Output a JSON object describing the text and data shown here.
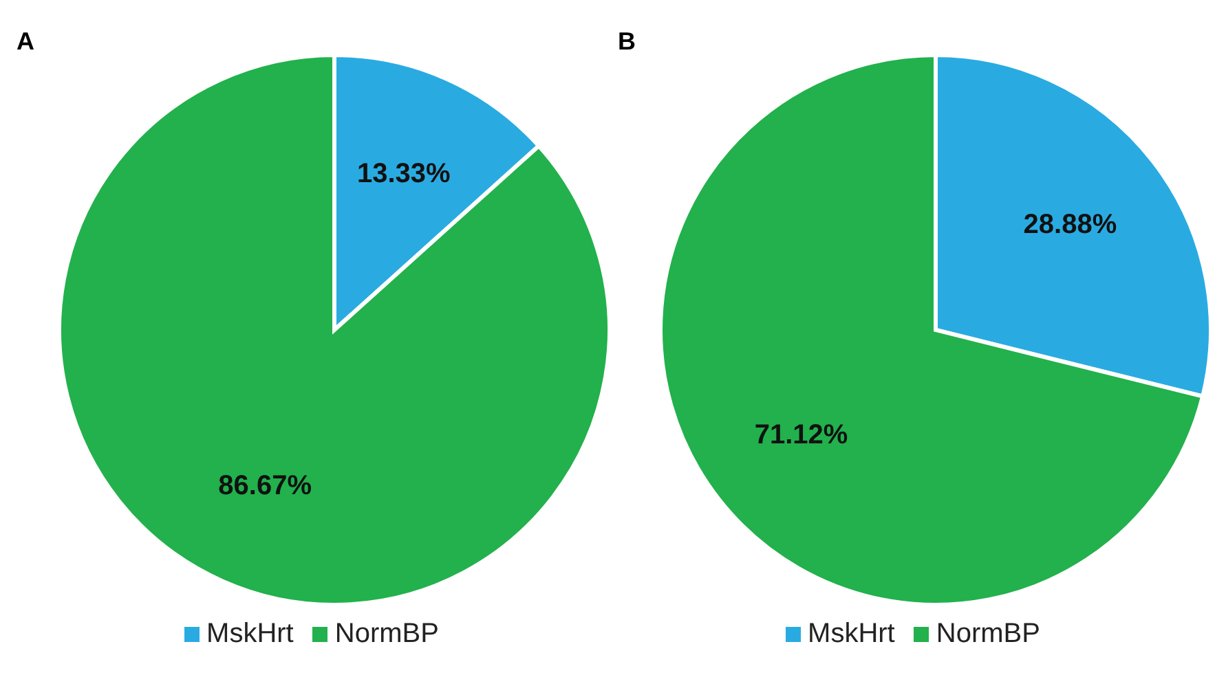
{
  "chart_data": [
    {
      "type": "pie",
      "title": "A",
      "categories": [
        "MskHrt",
        "NormBP"
      ],
      "values": [
        13.33,
        86.67
      ],
      "colors": [
        "#29abe2",
        "#22b14c"
      ],
      "value_labels": [
        "13.33%",
        "86.67%"
      ],
      "legend": "bottom"
    },
    {
      "type": "pie",
      "title": "B",
      "categories": [
        "MskHrt",
        "NormBP"
      ],
      "values": [
        28.88,
        71.12
      ],
      "colors": [
        "#29abe2",
        "#22b14c"
      ],
      "value_labels": [
        "28.88%",
        "71.12%"
      ],
      "legend": "bottom"
    }
  ]
}
